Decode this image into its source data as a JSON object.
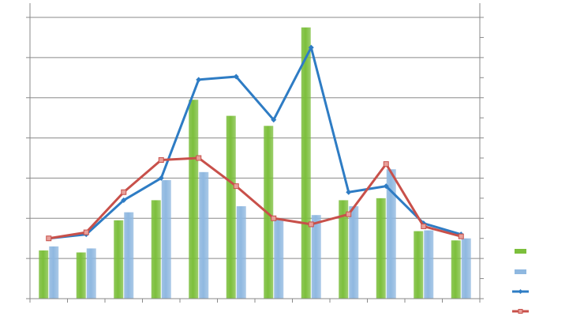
{
  "chart_data": {
    "type": "bar",
    "title": "",
    "xlabel": "",
    "ylabel": "",
    "ylim": [
      0,
      7
    ],
    "y2lim": [
      0,
      14
    ],
    "grid": true,
    "legend_position": "right",
    "categories": [
      "",
      "",
      "",
      "",
      "",
      "",
      "",
      "",
      "",
      "",
      "",
      ""
    ],
    "series": [
      {
        "kind": "bar",
        "axis": "left",
        "color": "#7cbf3c",
        "values": [
          1.2,
          1.15,
          1.95,
          2.45,
          4.95,
          4.55,
          4.3,
          6.75,
          2.45,
          2.5,
          1.68,
          1.45
        ]
      },
      {
        "kind": "bar",
        "axis": "left",
        "color": "#8fb8e0",
        "values": [
          1.3,
          1.25,
          2.15,
          2.95,
          3.15,
          2.3,
          2.0,
          2.08,
          2.3,
          3.22,
          1.7,
          1.5
        ]
      },
      {
        "kind": "line",
        "axis": "right",
        "color": "#2e7cc4",
        "values": [
          3.0,
          3.2,
          4.9,
          6.0,
          10.9,
          11.05,
          8.9,
          12.5,
          5.3,
          5.6,
          3.75,
          3.2
        ]
      },
      {
        "kind": "line",
        "axis": "right",
        "color": "#c8504a",
        "values": [
          3.0,
          3.3,
          5.3,
          6.9,
          7.0,
          5.6,
          4.0,
          3.7,
          4.2,
          6.7,
          3.6,
          3.1
        ]
      }
    ]
  }
}
